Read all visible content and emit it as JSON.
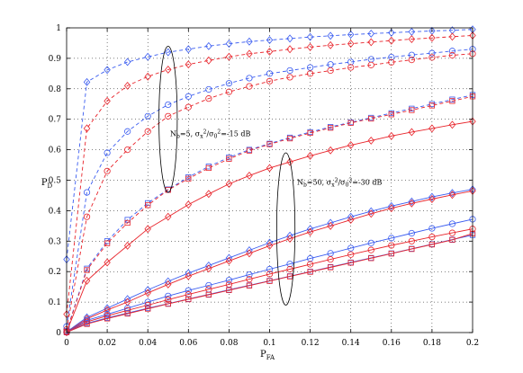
{
  "chart_data": {
    "type": "line",
    "title": "",
    "xlabel": {
      "main": "P",
      "sub": "FA"
    },
    "ylabel": {
      "main": "P",
      "sub": "D"
    },
    "xlim": [
      0,
      0.2
    ],
    "ylim": [
      0,
      1
    ],
    "xticks": [
      "0",
      "0.02",
      "0.04",
      "0.06",
      "0.08",
      "0.1",
      "0.12",
      "0.14",
      "0.16",
      "0.18",
      "0.2"
    ],
    "yticks": [
      "0",
      "0.1",
      "0.2",
      "0.3",
      "0.4",
      "0.5",
      "0.6",
      "0.7",
      "0.8",
      "0.9",
      "1"
    ],
    "grid": true,
    "colors": {
      "blue": "#3a5cf0",
      "red": "#e8232a"
    },
    "x": [
      0,
      0.01,
      0.02,
      0.03,
      0.04,
      0.05,
      0.06,
      0.07,
      0.08,
      0.09,
      0.1,
      0.11,
      0.12,
      0.13,
      0.14,
      0.15,
      0.16,
      0.17,
      0.18,
      0.19,
      0.2
    ],
    "series": [
      {
        "color": "blue",
        "dash": true,
        "marker": "diamond",
        "values": [
          0.24,
          0.822,
          0.862,
          0.888,
          0.905,
          0.92,
          0.93,
          0.94,
          0.948,
          0.955,
          0.96,
          0.965,
          0.97,
          0.974,
          0.978,
          0.981,
          0.984,
          0.987,
          0.99,
          0.992,
          0.995
        ]
      },
      {
        "color": "red",
        "dash": true,
        "marker": "diamond",
        "values": [
          0.06,
          0.67,
          0.76,
          0.81,
          0.84,
          0.863,
          0.88,
          0.893,
          0.905,
          0.915,
          0.922,
          0.93,
          0.937,
          0.943,
          0.948,
          0.953,
          0.958,
          0.963,
          0.967,
          0.971,
          0.975
        ]
      },
      {
        "color": "blue",
        "dash": true,
        "marker": "circle",
        "values": [
          0.02,
          0.46,
          0.59,
          0.66,
          0.71,
          0.748,
          0.775,
          0.798,
          0.818,
          0.835,
          0.85,
          0.86,
          0.87,
          0.88,
          0.888,
          0.897,
          0.904,
          0.911,
          0.917,
          0.924,
          0.93
        ]
      },
      {
        "color": "red",
        "dash": true,
        "marker": "circle",
        "values": [
          0.01,
          0.38,
          0.53,
          0.6,
          0.66,
          0.71,
          0.74,
          0.768,
          0.79,
          0.808,
          0.825,
          0.838,
          0.85,
          0.86,
          0.87,
          0.878,
          0.887,
          0.895,
          0.903,
          0.91,
          0.915
        ]
      },
      {
        "color": "blue",
        "dash": true,
        "marker": "square",
        "values": [
          0.005,
          0.21,
          0.3,
          0.37,
          0.425,
          0.47,
          0.51,
          0.545,
          0.575,
          0.6,
          0.62,
          0.64,
          0.658,
          0.675,
          0.69,
          0.705,
          0.72,
          0.735,
          0.75,
          0.765,
          0.78
        ]
      },
      {
        "color": "red",
        "dash": true,
        "marker": "square",
        "values": [
          0.003,
          0.205,
          0.293,
          0.36,
          0.418,
          0.468,
          0.505,
          0.54,
          0.57,
          0.597,
          0.618,
          0.637,
          0.655,
          0.672,
          0.688,
          0.702,
          0.716,
          0.73,
          0.745,
          0.76,
          0.775
        ]
      },
      {
        "color": "red",
        "dash": false,
        "marker": "diamond",
        "values": [
          0.002,
          0.17,
          0.23,
          0.285,
          0.34,
          0.38,
          0.42,
          0.455,
          0.488,
          0.515,
          0.54,
          0.56,
          0.58,
          0.598,
          0.615,
          0.63,
          0.645,
          0.658,
          0.67,
          0.682,
          0.693
        ]
      },
      {
        "color": "blue",
        "dash": false,
        "marker": "diamond",
        "values": [
          0.002,
          0.05,
          0.08,
          0.11,
          0.14,
          0.168,
          0.195,
          0.22,
          0.245,
          0.27,
          0.295,
          0.318,
          0.34,
          0.36,
          0.38,
          0.398,
          0.415,
          0.43,
          0.445,
          0.458,
          0.47
        ]
      },
      {
        "color": "red",
        "dash": false,
        "marker": "diamond",
        "values": [
          0.001,
          0.045,
          0.074,
          0.1,
          0.13,
          0.158,
          0.185,
          0.21,
          0.235,
          0.26,
          0.285,
          0.308,
          0.33,
          0.35,
          0.37,
          0.39,
          0.408,
          0.424,
          0.438,
          0.452,
          0.465
        ]
      },
      {
        "color": "blue",
        "dash": false,
        "marker": "circle",
        "values": [
          0.001,
          0.04,
          0.06,
          0.08,
          0.1,
          0.12,
          0.138,
          0.155,
          0.172,
          0.19,
          0.208,
          0.225,
          0.243,
          0.26,
          0.277,
          0.294,
          0.31,
          0.326,
          0.342,
          0.357,
          0.372
        ]
      },
      {
        "color": "red",
        "dash": false,
        "marker": "circle",
        "values": [
          0.001,
          0.035,
          0.055,
          0.073,
          0.09,
          0.108,
          0.125,
          0.142,
          0.158,
          0.175,
          0.192,
          0.208,
          0.224,
          0.24,
          0.256,
          0.271,
          0.286,
          0.3,
          0.314,
          0.327,
          0.34
        ]
      },
      {
        "color": "blue",
        "dash": false,
        "marker": "square",
        "values": [
          0.001,
          0.03,
          0.048,
          0.064,
          0.08,
          0.095,
          0.11,
          0.125,
          0.14,
          0.155,
          0.17,
          0.185,
          0.2,
          0.215,
          0.23,
          0.245,
          0.26,
          0.275,
          0.29,
          0.305,
          0.32
        ]
      },
      {
        "color": "red",
        "dash": false,
        "marker": "square",
        "values": [
          0.001,
          0.028,
          0.046,
          0.062,
          0.078,
          0.094,
          0.109,
          0.124,
          0.139,
          0.154,
          0.169,
          0.184,
          0.199,
          0.214,
          0.229,
          0.244,
          0.259,
          0.274,
          0.289,
          0.304,
          0.325
        ]
      }
    ],
    "annotations": [
      {
        "text": "N_b=5, σ_x^2/σ_0^2=-15 dB",
        "parts": {
          "n": "N",
          "nsub": "b",
          "eq1": "=5, σ",
          "xsub": "x",
          "sup2a": "2",
          "slash": "/σ",
          "zsub": "0",
          "sup2b": "2",
          "rest": "=-15 dB"
        },
        "x": 0.051,
        "y": 0.645
      },
      {
        "text": "N_b=50, σ_x^2/σ_0^2=-30 dB",
        "parts": {
          "n": "N",
          "nsub": "b",
          "eq1": "=50, σ",
          "xsub": "x",
          "sup2a": "2",
          "slash": "/σ",
          "zsub": "0",
          "sup2b": "2",
          "rest": "=-30 dB"
        },
        "x": 0.1135,
        "y": 0.485
      }
    ],
    "ellipses": [
      {
        "cx": 0.05,
        "cy": 0.7,
        "rx": 0.0045,
        "ry": 0.24
      },
      {
        "cx": 0.108,
        "cy": 0.34,
        "rx": 0.0045,
        "ry": 0.25
      }
    ]
  }
}
